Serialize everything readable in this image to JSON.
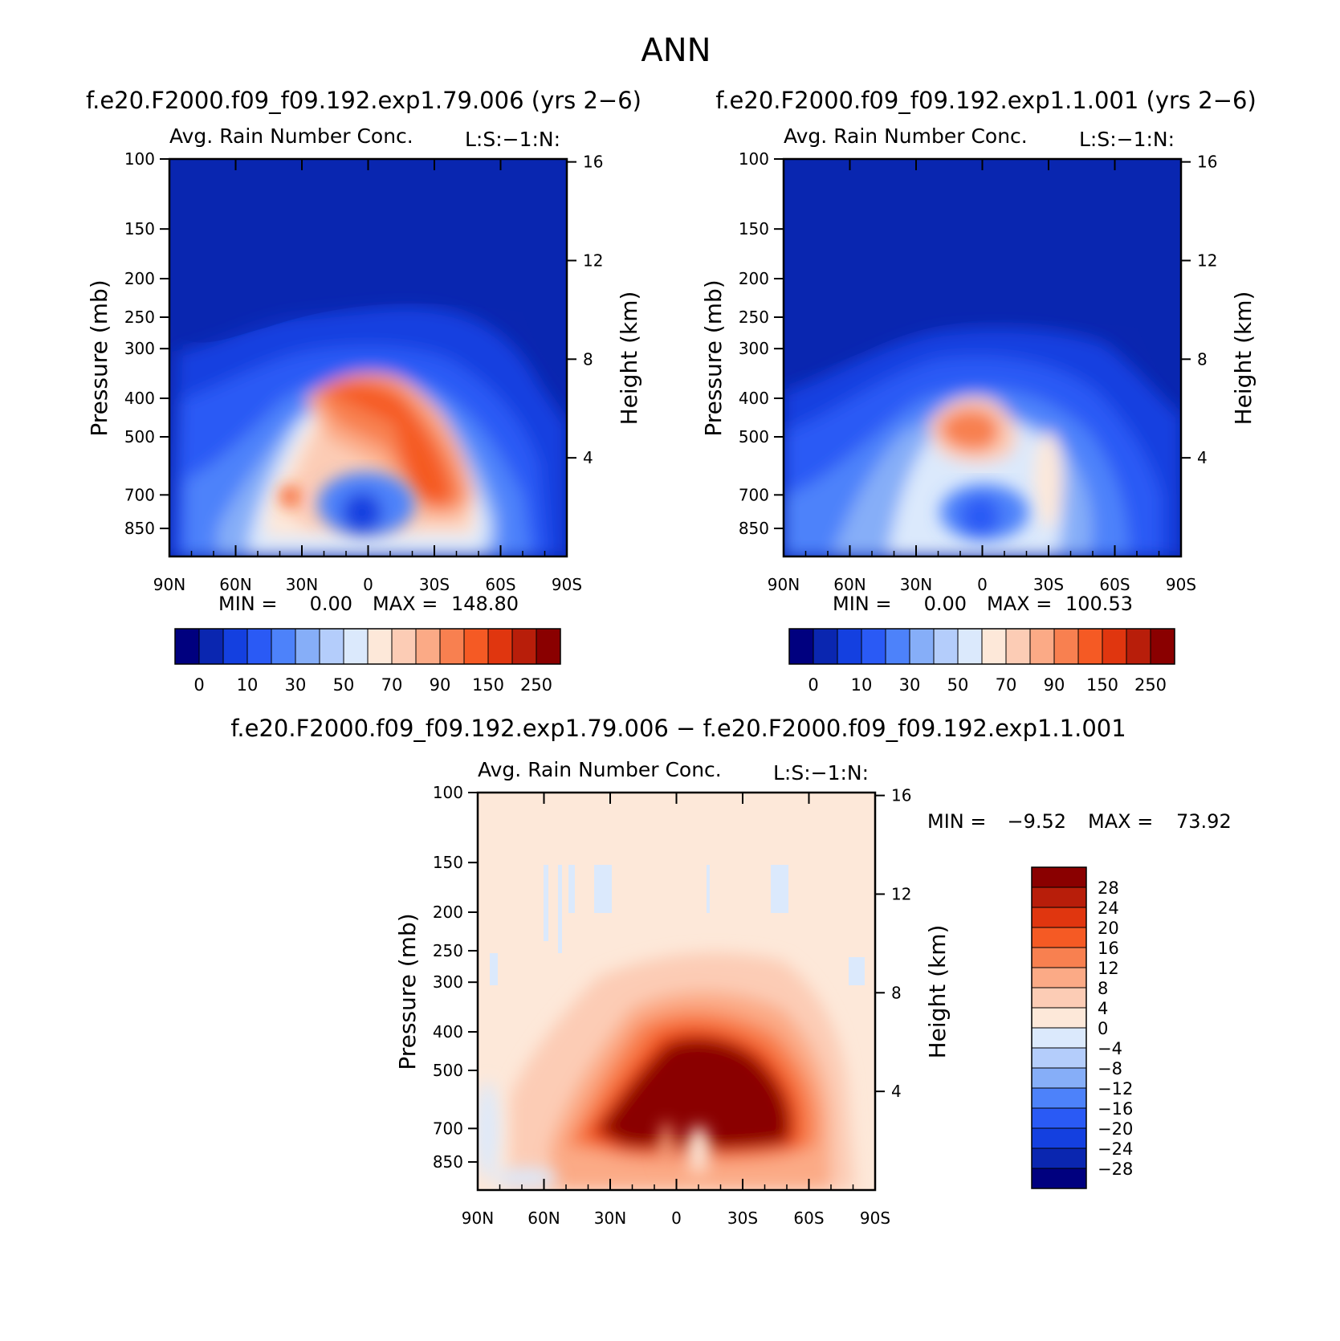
{
  "page_title": "ANN",
  "colors": {
    "top_scale": [
      "#00007f",
      "#0a26b0",
      "#1440e0",
      "#2a5af5",
      "#4d82fa",
      "#86aef8",
      "#b4cdfb",
      "#dbe9fc",
      "#fde8d9",
      "#fcccb5",
      "#fbaa86",
      "#f88050",
      "#f55a24",
      "#e0360f",
      "#b81e0a",
      "#8a0000"
    ],
    "diff_scale": [
      "#00007f",
      "#0a26b0",
      "#1440e0",
      "#2a5af5",
      "#4d82fa",
      "#86aef8",
      "#b4cdfb",
      "#dbe9fc",
      "#fde8d9",
      "#fcccb5",
      "#fbaa86",
      "#f88050",
      "#f55a24",
      "#e0360f",
      "#b81e0a",
      "#8a0000"
    ]
  },
  "chart_data": [
    {
      "type": "heatmap",
      "case_title": "f.e20.F2000.f09_f09.192.exp1.79.006 (yrs 2−6)",
      "title": "Avg. Rain Number Conc.",
      "corner_label": "L:S:−1:N:",
      "ylabel": "Pressure (mb)",
      "y2label": "Height (km)",
      "xticks": [
        "90N",
        "60N",
        "30N",
        "0",
        "30S",
        "60S",
        "90S"
      ],
      "yticks": [
        "100",
        "150",
        "200",
        "250",
        "300",
        "400",
        "500",
        "700",
        "850"
      ],
      "y2ticks": [
        "16",
        "12",
        "8",
        "4"
      ],
      "min_label": "MIN =",
      "min_value": "0.00",
      "max_label": "MAX =",
      "max_value": "148.80",
      "colorbar_labels": [
        "0",
        "10",
        "30",
        "50",
        "70",
        "90",
        "150",
        "250"
      ],
      "zmin": 0.0,
      "zmax": 148.8,
      "features": [
        {
          "lat": 5,
          "plev": 420,
          "value": 148.8
        },
        {
          "lat": -30,
          "plev": 600,
          "value": 130
        },
        {
          "lat": 25,
          "plev": 650,
          "value": 80
        },
        {
          "lat": 0,
          "plev": 700,
          "value": 15
        },
        {
          "lat": 0,
          "plev": 150,
          "value": 0
        }
      ]
    },
    {
      "type": "heatmap",
      "case_title": "f.e20.F2000.f09_f09.192.exp1.1.001 (yrs 2−6)",
      "title": "Avg. Rain Number Conc.",
      "corner_label": "L:S:−1:N:",
      "ylabel": "Pressure (mb)",
      "y2label": "Height (km)",
      "xticks": [
        "90N",
        "60N",
        "30N",
        "0",
        "30S",
        "60S",
        "90S"
      ],
      "yticks": [
        "100",
        "150",
        "200",
        "250",
        "300",
        "400",
        "500",
        "700",
        "850"
      ],
      "y2ticks": [
        "16",
        "12",
        "8",
        "4"
      ],
      "min_label": "MIN =",
      "min_value": "0.00",
      "max_label": "MAX =",
      "max_value": "100.53",
      "colorbar_labels": [
        "0",
        "10",
        "30",
        "50",
        "70",
        "90",
        "150",
        "250"
      ],
      "zmin": 0.0,
      "zmax": 100.53,
      "features": [
        {
          "lat": 5,
          "plev": 430,
          "value": 100.53
        },
        {
          "lat": 0,
          "plev": 680,
          "value": 20
        },
        {
          "lat": 0,
          "plev": 150,
          "value": 0
        }
      ]
    },
    {
      "type": "heatmap",
      "case_title": "f.e20.F2000.f09_f09.192.exp1.79.006 − f.e20.F2000.f09_f09.192.exp1.1.001",
      "title": "Avg. Rain Number Conc.",
      "corner_label": "L:S:−1:N:",
      "ylabel": "Pressure (mb)",
      "y2label": "Height (km)",
      "xticks": [
        "90N",
        "60N",
        "30N",
        "0",
        "30S",
        "60S",
        "90S"
      ],
      "yticks": [
        "100",
        "150",
        "200",
        "250",
        "300",
        "400",
        "500",
        "700",
        "850"
      ],
      "y2ticks": [
        "16",
        "12",
        "8",
        "4"
      ],
      "min_label": "MIN =",
      "min_value": "−9.52",
      "max_label": "MAX =",
      "max_value": "73.92",
      "colorbar_labels": [
        "28",
        "24",
        "20",
        "16",
        "12",
        "8",
        "4",
        "0",
        "−4",
        "−8",
        "−12",
        "−16",
        "−20",
        "−24",
        "−28"
      ],
      "zmin": -9.52,
      "zmax": 73.92,
      "features": [
        {
          "lat": 0,
          "plev": 500,
          "value": 73.92
        },
        {
          "lat": -30,
          "plev": 600,
          "value": 50
        },
        {
          "lat": 10,
          "plev": 820,
          "value": -4
        },
        {
          "lat": 80,
          "plev": 650,
          "value": -9.52
        }
      ]
    }
  ]
}
